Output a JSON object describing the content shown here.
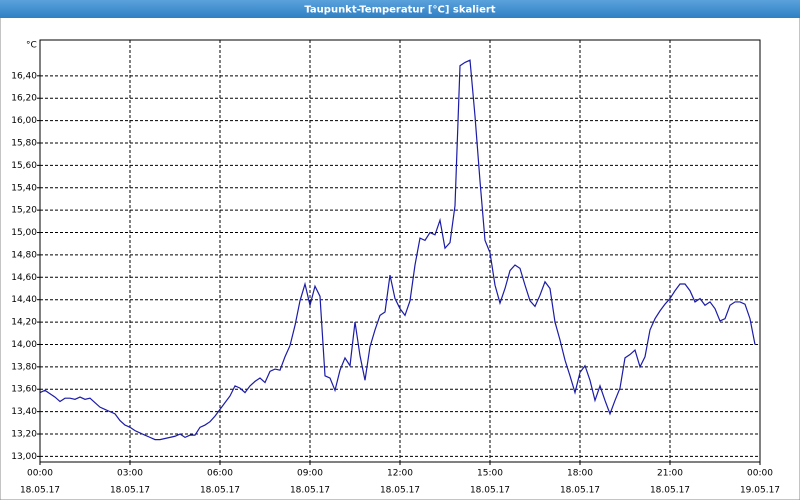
{
  "chart_data": {
    "type": "line",
    "title": "Taupunkt-Temperatur [°C] skaliert",
    "y_unit": "°C",
    "grid": true,
    "xlim": [
      0,
      1440
    ],
    "xticks": [
      {
        "value": 0,
        "label": "00:00",
        "date": "18.05.17"
      },
      {
        "value": 180,
        "label": "03:00",
        "date": "18.05.17"
      },
      {
        "value": 360,
        "label": "06:00",
        "date": "18.05.17"
      },
      {
        "value": 540,
        "label": "09:00",
        "date": "18.05.17"
      },
      {
        "value": 720,
        "label": "12:00",
        "date": "18.05.17"
      },
      {
        "value": 900,
        "label": "15:00",
        "date": "18.05.17"
      },
      {
        "value": 1080,
        "label": "18:00",
        "date": "18.05.17"
      },
      {
        "value": 1260,
        "label": "21:00",
        "date": "18.05.17"
      },
      {
        "value": 1440,
        "label": "00:00",
        "date": "19.05.17"
      }
    ],
    "ylim": [
      12.95,
      16.72
    ],
    "yticks": [
      {
        "value": 13.0,
        "label": "13,00"
      },
      {
        "value": 13.2,
        "label": "13,20"
      },
      {
        "value": 13.4,
        "label": "13,40"
      },
      {
        "value": 13.6,
        "label": "13,60"
      },
      {
        "value": 13.8,
        "label": "13,80"
      },
      {
        "value": 14.0,
        "label": "14,00"
      },
      {
        "value": 14.2,
        "label": "14,20"
      },
      {
        "value": 14.4,
        "label": "14,40"
      },
      {
        "value": 14.6,
        "label": "14,60"
      },
      {
        "value": 14.8,
        "label": "14,80"
      },
      {
        "value": 15.0,
        "label": "15,00"
      },
      {
        "value": 15.2,
        "label": "15,20"
      },
      {
        "value": 15.4,
        "label": "15,40"
      },
      {
        "value": 15.6,
        "label": "15,60"
      },
      {
        "value": 15.8,
        "label": "15,80"
      },
      {
        "value": 16.0,
        "label": "16,00"
      },
      {
        "value": 16.2,
        "label": "16,20"
      },
      {
        "value": 16.4,
        "label": "16,40"
      }
    ],
    "x": [
      0,
      10,
      20,
      30,
      40,
      50,
      60,
      70,
      80,
      90,
      100,
      110,
      120,
      130,
      140,
      150,
      160,
      170,
      180,
      190,
      200,
      210,
      220,
      230,
      240,
      250,
      260,
      270,
      280,
      290,
      300,
      310,
      320,
      330,
      340,
      350,
      360,
      370,
      380,
      390,
      400,
      410,
      420,
      430,
      440,
      450,
      460,
      470,
      480,
      490,
      500,
      510,
      520,
      530,
      540,
      550,
      560,
      570,
      580,
      590,
      600,
      610,
      620,
      630,
      640,
      650,
      660,
      670,
      680,
      690,
      700,
      710,
      720,
      730,
      740,
      750,
      760,
      770,
      780,
      790,
      800,
      810,
      820,
      830,
      840,
      850,
      860,
      870,
      880,
      890,
      900,
      910,
      920,
      930,
      940,
      950,
      960,
      970,
      980,
      990,
      1000,
      1010,
      1020,
      1030,
      1040,
      1050,
      1060,
      1070,
      1080,
      1090,
      1100,
      1110,
      1120,
      1130,
      1140,
      1150,
      1160,
      1170,
      1180,
      1190,
      1200,
      1210,
      1220,
      1230,
      1240,
      1250,
      1260,
      1270,
      1280,
      1290,
      1300,
      1310,
      1320,
      1330,
      1340,
      1350,
      1360,
      1370,
      1380,
      1390,
      1400,
      1410,
      1420,
      1430
    ],
    "series": [
      {
        "color": "#1c1ca8",
        "values": [
          13.57,
          13.59,
          13.56,
          13.53,
          13.49,
          13.52,
          13.52,
          13.51,
          13.53,
          13.51,
          13.52,
          13.48,
          13.44,
          13.42,
          13.4,
          13.38,
          13.32,
          13.28,
          13.26,
          13.23,
          13.21,
          13.19,
          13.17,
          13.15,
          13.15,
          13.16,
          13.17,
          13.18,
          13.2,
          13.17,
          13.19,
          13.19,
          13.26,
          13.28,
          13.31,
          13.36,
          13.42,
          13.48,
          13.54,
          13.63,
          13.61,
          13.57,
          13.63,
          13.67,
          13.7,
          13.66,
          13.76,
          13.78,
          13.77,
          13.89,
          13.99,
          14.17,
          14.39,
          14.54,
          14.35,
          14.52,
          14.43,
          13.72,
          13.7,
          13.59,
          13.77,
          13.88,
          13.81,
          14.2,
          13.9,
          13.68,
          13.98,
          14.13,
          14.26,
          14.29,
          14.62,
          14.41,
          14.32,
          14.26,
          14.39,
          14.71,
          14.95,
          14.93,
          15.0,
          14.98,
          15.11,
          14.86,
          14.91,
          15.24,
          16.49,
          16.52,
          16.54,
          16.04,
          15.46,
          14.93,
          14.82,
          14.53,
          14.37,
          14.5,
          14.66,
          14.71,
          14.68,
          14.53,
          14.39,
          14.34,
          14.44,
          14.56,
          14.5,
          14.2,
          14.04,
          13.86,
          13.72,
          13.57,
          13.75,
          13.81,
          13.68,
          13.5,
          13.63,
          13.5,
          13.38,
          13.5,
          13.61,
          13.88,
          13.91,
          13.95,
          13.8,
          13.89,
          14.13,
          14.23,
          14.3,
          14.36,
          14.41,
          14.48,
          14.54,
          14.54,
          14.48,
          14.38,
          14.41,
          14.35,
          14.38,
          14.32,
          14.21,
          14.23,
          14.35,
          14.38,
          14.38,
          14.36,
          14.23,
          14.0
        ]
      }
    ]
  }
}
